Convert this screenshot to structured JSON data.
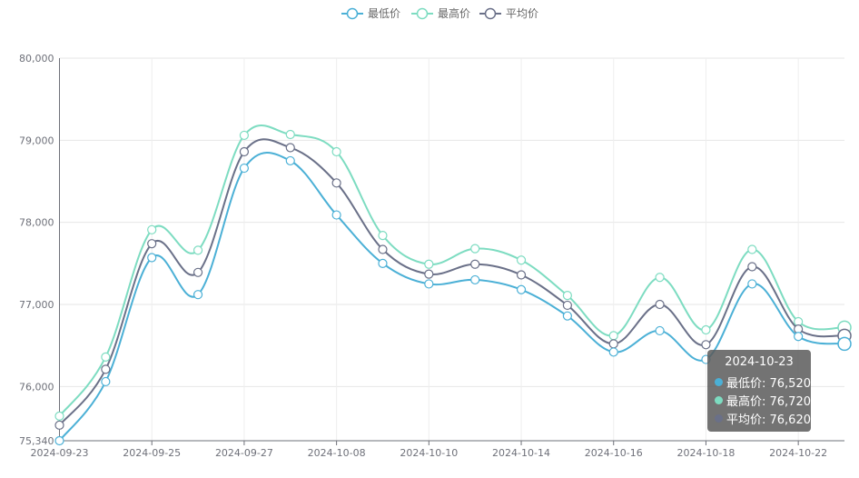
{
  "colors": {
    "low": "#4bb0d6",
    "high": "#7ddcc1",
    "avg": "#6a7088"
  },
  "chart_data": {
    "type": "line",
    "title": "",
    "xlabel": "",
    "ylabel": "",
    "ylim": [
      75340,
      80000
    ],
    "y_ticks": [
      "75,340",
      "76,000",
      "77,000",
      "78,000",
      "79,000",
      "80,000"
    ],
    "y_tick_values": [
      75340,
      76000,
      77000,
      78000,
      79000,
      80000
    ],
    "x": [
      "2024-09-23",
      "2024-09-24",
      "2024-09-25",
      "2024-09-26",
      "2024-09-27",
      "2024-09-29",
      "2024-10-08",
      "2024-10-09",
      "2024-10-10",
      "2024-10-11",
      "2024-10-14",
      "2024-10-15",
      "2024-10-16",
      "2024-10-17",
      "2024-10-18",
      "2024-10-21",
      "2024-10-22",
      "2024-10-23"
    ],
    "x_tick_labels": [
      "2024-09-23",
      "2024-09-25",
      "2024-09-27",
      "2024-10-08",
      "2024-10-10",
      "2024-10-14",
      "2024-10-16",
      "2024-10-18",
      "2024-10-22"
    ],
    "x_tick_indices": [
      0,
      2,
      4,
      6,
      8,
      10,
      12,
      14,
      16
    ],
    "legend_position": "top-center",
    "grid": true,
    "series": [
      {
        "key": "low",
        "name": "最低价",
        "values": [
          75340,
          76060,
          77570,
          77120,
          78660,
          78750,
          78090,
          77500,
          77250,
          77300,
          77180,
          76860,
          76420,
          76680,
          76330,
          77250,
          76610,
          76520
        ]
      },
      {
        "key": "high",
        "name": "最高价",
        "values": [
          75640,
          76360,
          77910,
          77660,
          79060,
          79070,
          78860,
          77840,
          77490,
          77680,
          77540,
          77110,
          76620,
          77330,
          76690,
          77670,
          76790,
          76720
        ]
      },
      {
        "key": "avg",
        "name": "平均价",
        "values": [
          75530,
          76210,
          77740,
          77390,
          78860,
          78910,
          78480,
          77670,
          77370,
          77490,
          77360,
          76990,
          76520,
          77000,
          76510,
          77460,
          76700,
          76620
        ]
      }
    ]
  },
  "tooltip": {
    "title": "2024-10-23",
    "rows": [
      {
        "text": "最低价: 76,520",
        "color": "#4bb0d6"
      },
      {
        "text": "最高价: 76,720",
        "color": "#7ddcc1"
      },
      {
        "text": "平均价: 76,620",
        "color": "#6a7088"
      }
    ]
  }
}
